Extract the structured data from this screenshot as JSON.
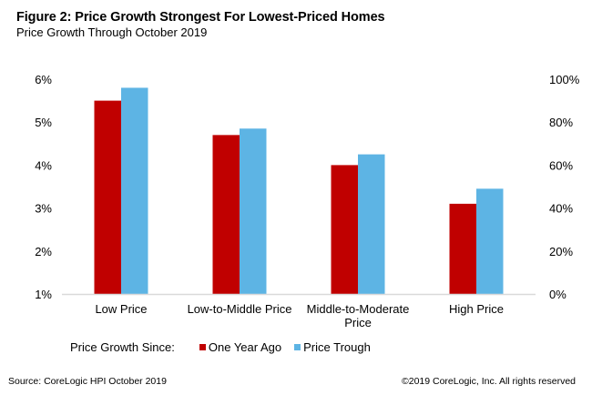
{
  "chart_data": {
    "type": "bar",
    "title": "Figure 2: Price Growth Strongest For Lowest-Priced Homes",
    "subtitle": "Price Growth Through  October 2019",
    "categories": [
      "Low Price",
      "Low-to-Middle Price",
      "Middle-to-Moderate Price",
      "High Price"
    ],
    "category_lines": [
      [
        "Low Price"
      ],
      [
        "Low-to-Middle Price"
      ],
      [
        "Middle-to-Moderate",
        "Price"
      ],
      [
        "High Price"
      ]
    ],
    "series": [
      {
        "name": "One Year Ago",
        "axis": "left",
        "color": "#C00000",
        "values": [
          5.5,
          4.7,
          4.0,
          3.1
        ]
      },
      {
        "name": "Price Trough",
        "axis": "right",
        "color": "#5DB4E4",
        "values": [
          96,
          77,
          65,
          49
        ]
      }
    ],
    "left_axis": {
      "ylim": [
        1,
        6
      ],
      "ticks": [
        1,
        2,
        3,
        4,
        5,
        6
      ],
      "tick_labels": [
        "1%",
        "2%",
        "3%",
        "4%",
        "5%",
        "6%"
      ]
    },
    "right_axis": {
      "ylim": [
        0,
        100
      ],
      "ticks": [
        0,
        20,
        40,
        60,
        80,
        100
      ],
      "tick_labels": [
        "0%",
        "20%",
        "40%",
        "60%",
        "80%",
        "100%"
      ]
    },
    "xlabel": "",
    "ylabel": "",
    "grid": false,
    "legend": {
      "title": "Price Growth  Since:",
      "placement": "bottom"
    }
  },
  "footer": {
    "source": "Source: CoreLogic HPI  October 2019",
    "copyright": "©2019 CoreLogic, Inc. All rights reserved"
  }
}
